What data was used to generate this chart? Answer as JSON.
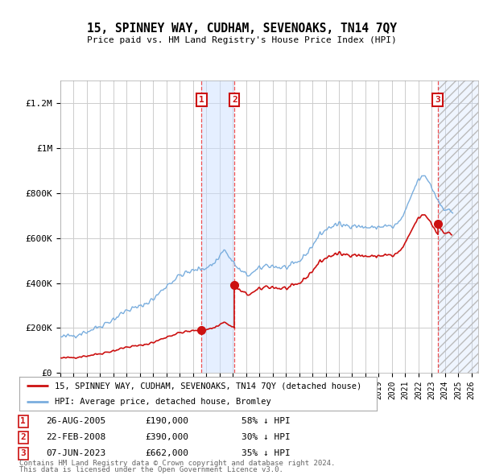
{
  "title": "15, SPINNEY WAY, CUDHAM, SEVENOAKS, TN14 7QY",
  "subtitle": "Price paid vs. HM Land Registry's House Price Index (HPI)",
  "ylabel_ticks": [
    "£0",
    "£200K",
    "£400K",
    "£600K",
    "£800K",
    "£1M",
    "£1.2M"
  ],
  "ytick_values": [
    0,
    200000,
    400000,
    600000,
    800000,
    1000000,
    1200000
  ],
  "ylim": [
    0,
    1300000
  ],
  "xlim_start": 1995.0,
  "xlim_end": 2026.5,
  "transactions": [
    {
      "num": 1,
      "date": "26-AUG-2005",
      "price": 190000,
      "year": 2005.65,
      "pct": "58%"
    },
    {
      "num": 2,
      "date": "22-FEB-2008",
      "price": 390000,
      "year": 2008.13,
      "pct": "30%"
    },
    {
      "num": 3,
      "date": "07-JUN-2023",
      "price": 662000,
      "year": 2023.44,
      "pct": "35%"
    }
  ],
  "vline_color": "#ee3333",
  "shade_color": "#cce0ff",
  "shade_alpha": 0.5,
  "hpi_color": "#7aaede",
  "price_color": "#cc1111",
  "legend_label_price": "15, SPINNEY WAY, CUDHAM, SEVENOAKS, TN14 7QY (detached house)",
  "legend_label_hpi": "HPI: Average price, detached house, Bromley",
  "footer_line1": "Contains HM Land Registry data © Crown copyright and database right 2024.",
  "footer_line2": "This data is licensed under the Open Government Licence v3.0.",
  "xtick_years": [
    1995,
    1996,
    1997,
    1998,
    1999,
    2000,
    2001,
    2002,
    2003,
    2004,
    2005,
    2006,
    2007,
    2008,
    2009,
    2010,
    2011,
    2012,
    2013,
    2014,
    2015,
    2016,
    2017,
    2018,
    2019,
    2020,
    2021,
    2022,
    2023,
    2024,
    2025,
    2026
  ],
  "bg_color": "#ffffff",
  "grid_color": "#cccccc",
  "transaction_box_color": "#cc1111"
}
